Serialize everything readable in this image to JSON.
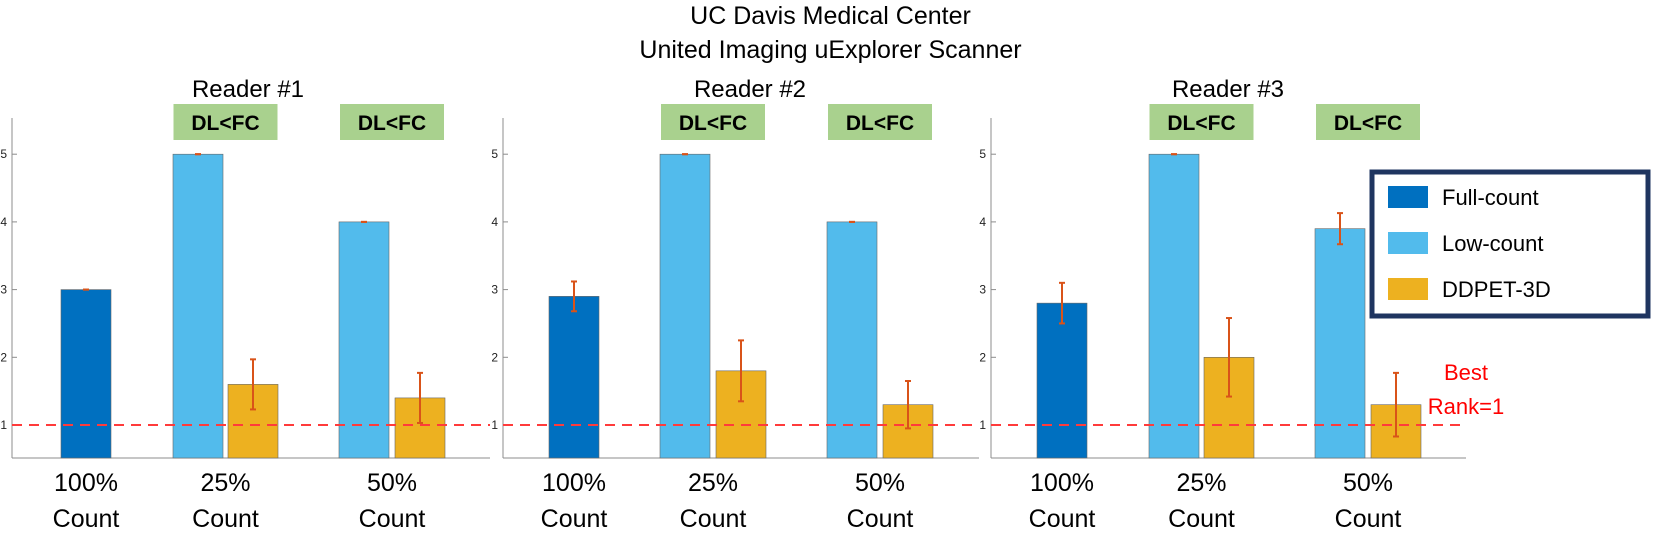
{
  "figure": {
    "title_lines": [
      "UC Davis Medical Center",
      "United Imaging uExplorer Scanner"
    ]
  },
  "chart_data": [
    {
      "type": "bar",
      "title": "Reader #1",
      "categories": [
        "100%\nCount",
        "25%\nCount",
        "50%\nCount"
      ],
      "yticks": [
        1,
        2,
        3,
        4,
        5
      ],
      "ylim": [
        0.5,
        5.5
      ],
      "grid": false,
      "series": [
        {
          "name": "Full-count",
          "color": "#0070C0",
          "values": [
            3.0,
            null,
            null
          ],
          "errors": [
            0,
            null,
            null
          ]
        },
        {
          "name": "Low-count",
          "color": "#52BBEC",
          "values": [
            null,
            5.0,
            4.0
          ],
          "errors": [
            null,
            0,
            0
          ]
        },
        {
          "name": "DDPET-3D",
          "color": "#EDB120",
          "values": [
            null,
            1.6,
            1.4
          ],
          "errors": [
            null,
            0.37,
            0.37
          ]
        }
      ],
      "badges": [
        {
          "text": "DL<FC",
          "category": 1
        },
        {
          "text": "DL<FC",
          "category": 2
        }
      ],
      "reference_line": {
        "y": 1,
        "color": "#FF3B3B"
      }
    },
    {
      "type": "bar",
      "title": "Reader #2",
      "categories": [
        "100%\nCount",
        "25%\nCount",
        "50%\nCount"
      ],
      "yticks": [
        1,
        2,
        3,
        4,
        5
      ],
      "ylim": [
        0.5,
        5.5
      ],
      "grid": false,
      "series": [
        {
          "name": "Full-count",
          "color": "#0070C0",
          "values": [
            2.9,
            null,
            null
          ],
          "errors": [
            0.22,
            null,
            null
          ]
        },
        {
          "name": "Low-count",
          "color": "#52BBEC",
          "values": [
            null,
            5.0,
            4.0
          ],
          "errors": [
            null,
            0,
            0
          ]
        },
        {
          "name": "DDPET-3D",
          "color": "#EDB120",
          "values": [
            null,
            1.8,
            1.3
          ],
          "errors": [
            null,
            0.45,
            0.35
          ]
        }
      ],
      "badges": [
        {
          "text": "DL<FC",
          "category": 1
        },
        {
          "text": "DL<FC",
          "category": 2
        }
      ],
      "reference_line": {
        "y": 1,
        "color": "#FF3B3B"
      }
    },
    {
      "type": "bar",
      "title": "Reader #3",
      "categories": [
        "100%\nCount",
        "25%\nCount",
        "50%\nCount"
      ],
      "yticks": [
        1,
        2,
        3,
        4,
        5
      ],
      "ylim": [
        0.5,
        5.5
      ],
      "grid": false,
      "series": [
        {
          "name": "Full-count",
          "color": "#0070C0",
          "values": [
            2.8,
            null,
            null
          ],
          "errors": [
            0.3,
            null,
            null
          ]
        },
        {
          "name": "Low-count",
          "color": "#52BBEC",
          "values": [
            null,
            5.0,
            3.9
          ],
          "errors": [
            null,
            0,
            0.23
          ]
        },
        {
          "name": "DDPET-3D",
          "color": "#EDB120",
          "values": [
            null,
            2.0,
            1.3
          ],
          "errors": [
            null,
            0.58,
            0.47
          ]
        }
      ],
      "badges": [
        {
          "text": "DL<FC",
          "category": 1
        },
        {
          "text": "DL<FC",
          "category": 2
        }
      ],
      "reference_line": {
        "y": 1,
        "color": "#FF3B3B"
      },
      "annotation": {
        "lines": [
          "Best",
          "Rank=1"
        ],
        "color": "#FF0000"
      },
      "legend": {
        "placement": "right",
        "border_color": "#1F3560",
        "entries": [
          {
            "label": "Full-count",
            "color": "#0070C0"
          },
          {
            "label": "Low-count",
            "color": "#52BBEC"
          },
          {
            "label": "DDPET-3D",
            "color": "#EDB120"
          }
        ]
      }
    }
  ]
}
